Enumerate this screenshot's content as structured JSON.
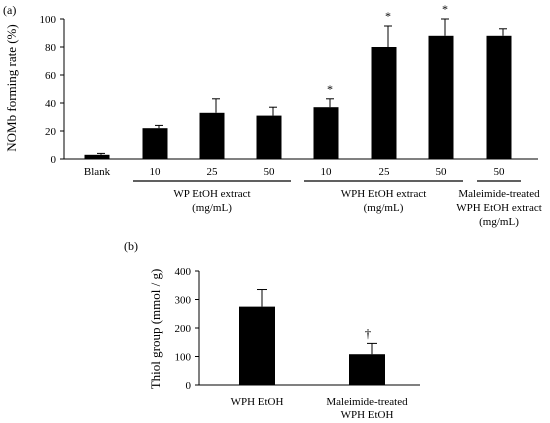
{
  "chart_data": [
    {
      "panel_label": "(a)",
      "type": "bar",
      "ylabel": "NOMb forming rate (%)",
      "ylim": [
        0,
        100
      ],
      "yticks": [
        0,
        20,
        40,
        60,
        80,
        100
      ],
      "color": "#000000",
      "bars": [
        {
          "tick": "Blank",
          "value": 3,
          "error": 1,
          "mark": ""
        },
        {
          "tick": "10",
          "value": 22,
          "error": 2,
          "mark": ""
        },
        {
          "tick": "25",
          "value": 33,
          "error": 10,
          "mark": ""
        },
        {
          "tick": "50",
          "value": 31,
          "error": 6,
          "mark": ""
        },
        {
          "tick": "10",
          "value": 37,
          "error": 6,
          "mark": "*"
        },
        {
          "tick": "25",
          "value": 80,
          "error": 15,
          "mark": "*"
        },
        {
          "tick": "50",
          "value": 88,
          "error": 12,
          "mark": "*"
        },
        {
          "tick": "50",
          "value": 88,
          "error": 5,
          "mark": ""
        }
      ],
      "groups": [
        {
          "label_lines": [
            "WP EtOH extract",
            "(mg/mL)"
          ],
          "bars": [
            1,
            2,
            3
          ]
        },
        {
          "label_lines": [
            "WPH EtOH extract",
            "(mg/mL)"
          ],
          "bars": [
            4,
            5,
            6
          ]
        },
        {
          "label_lines": [
            "Maleimide-treated",
            "WPH EtOH extract",
            "(mg/mL)"
          ],
          "bars": [
            7,
            7
          ]
        }
      ]
    },
    {
      "panel_label": "(b)",
      "type": "bar",
      "ylabel": "Thiol group  (mmol / g)",
      "ylim": [
        0,
        400
      ],
      "yticks": [
        0,
        100,
        200,
        300,
        400
      ],
      "color": "#000000",
      "bars": [
        {
          "tick_lines": [
            "WPH EtOH"
          ],
          "value": 275,
          "error": 60,
          "mark": ""
        },
        {
          "tick_lines": [
            "Maleimide-treated",
            "WPH EtOH"
          ],
          "value": 108,
          "error": 38,
          "mark": "†"
        }
      ]
    }
  ]
}
